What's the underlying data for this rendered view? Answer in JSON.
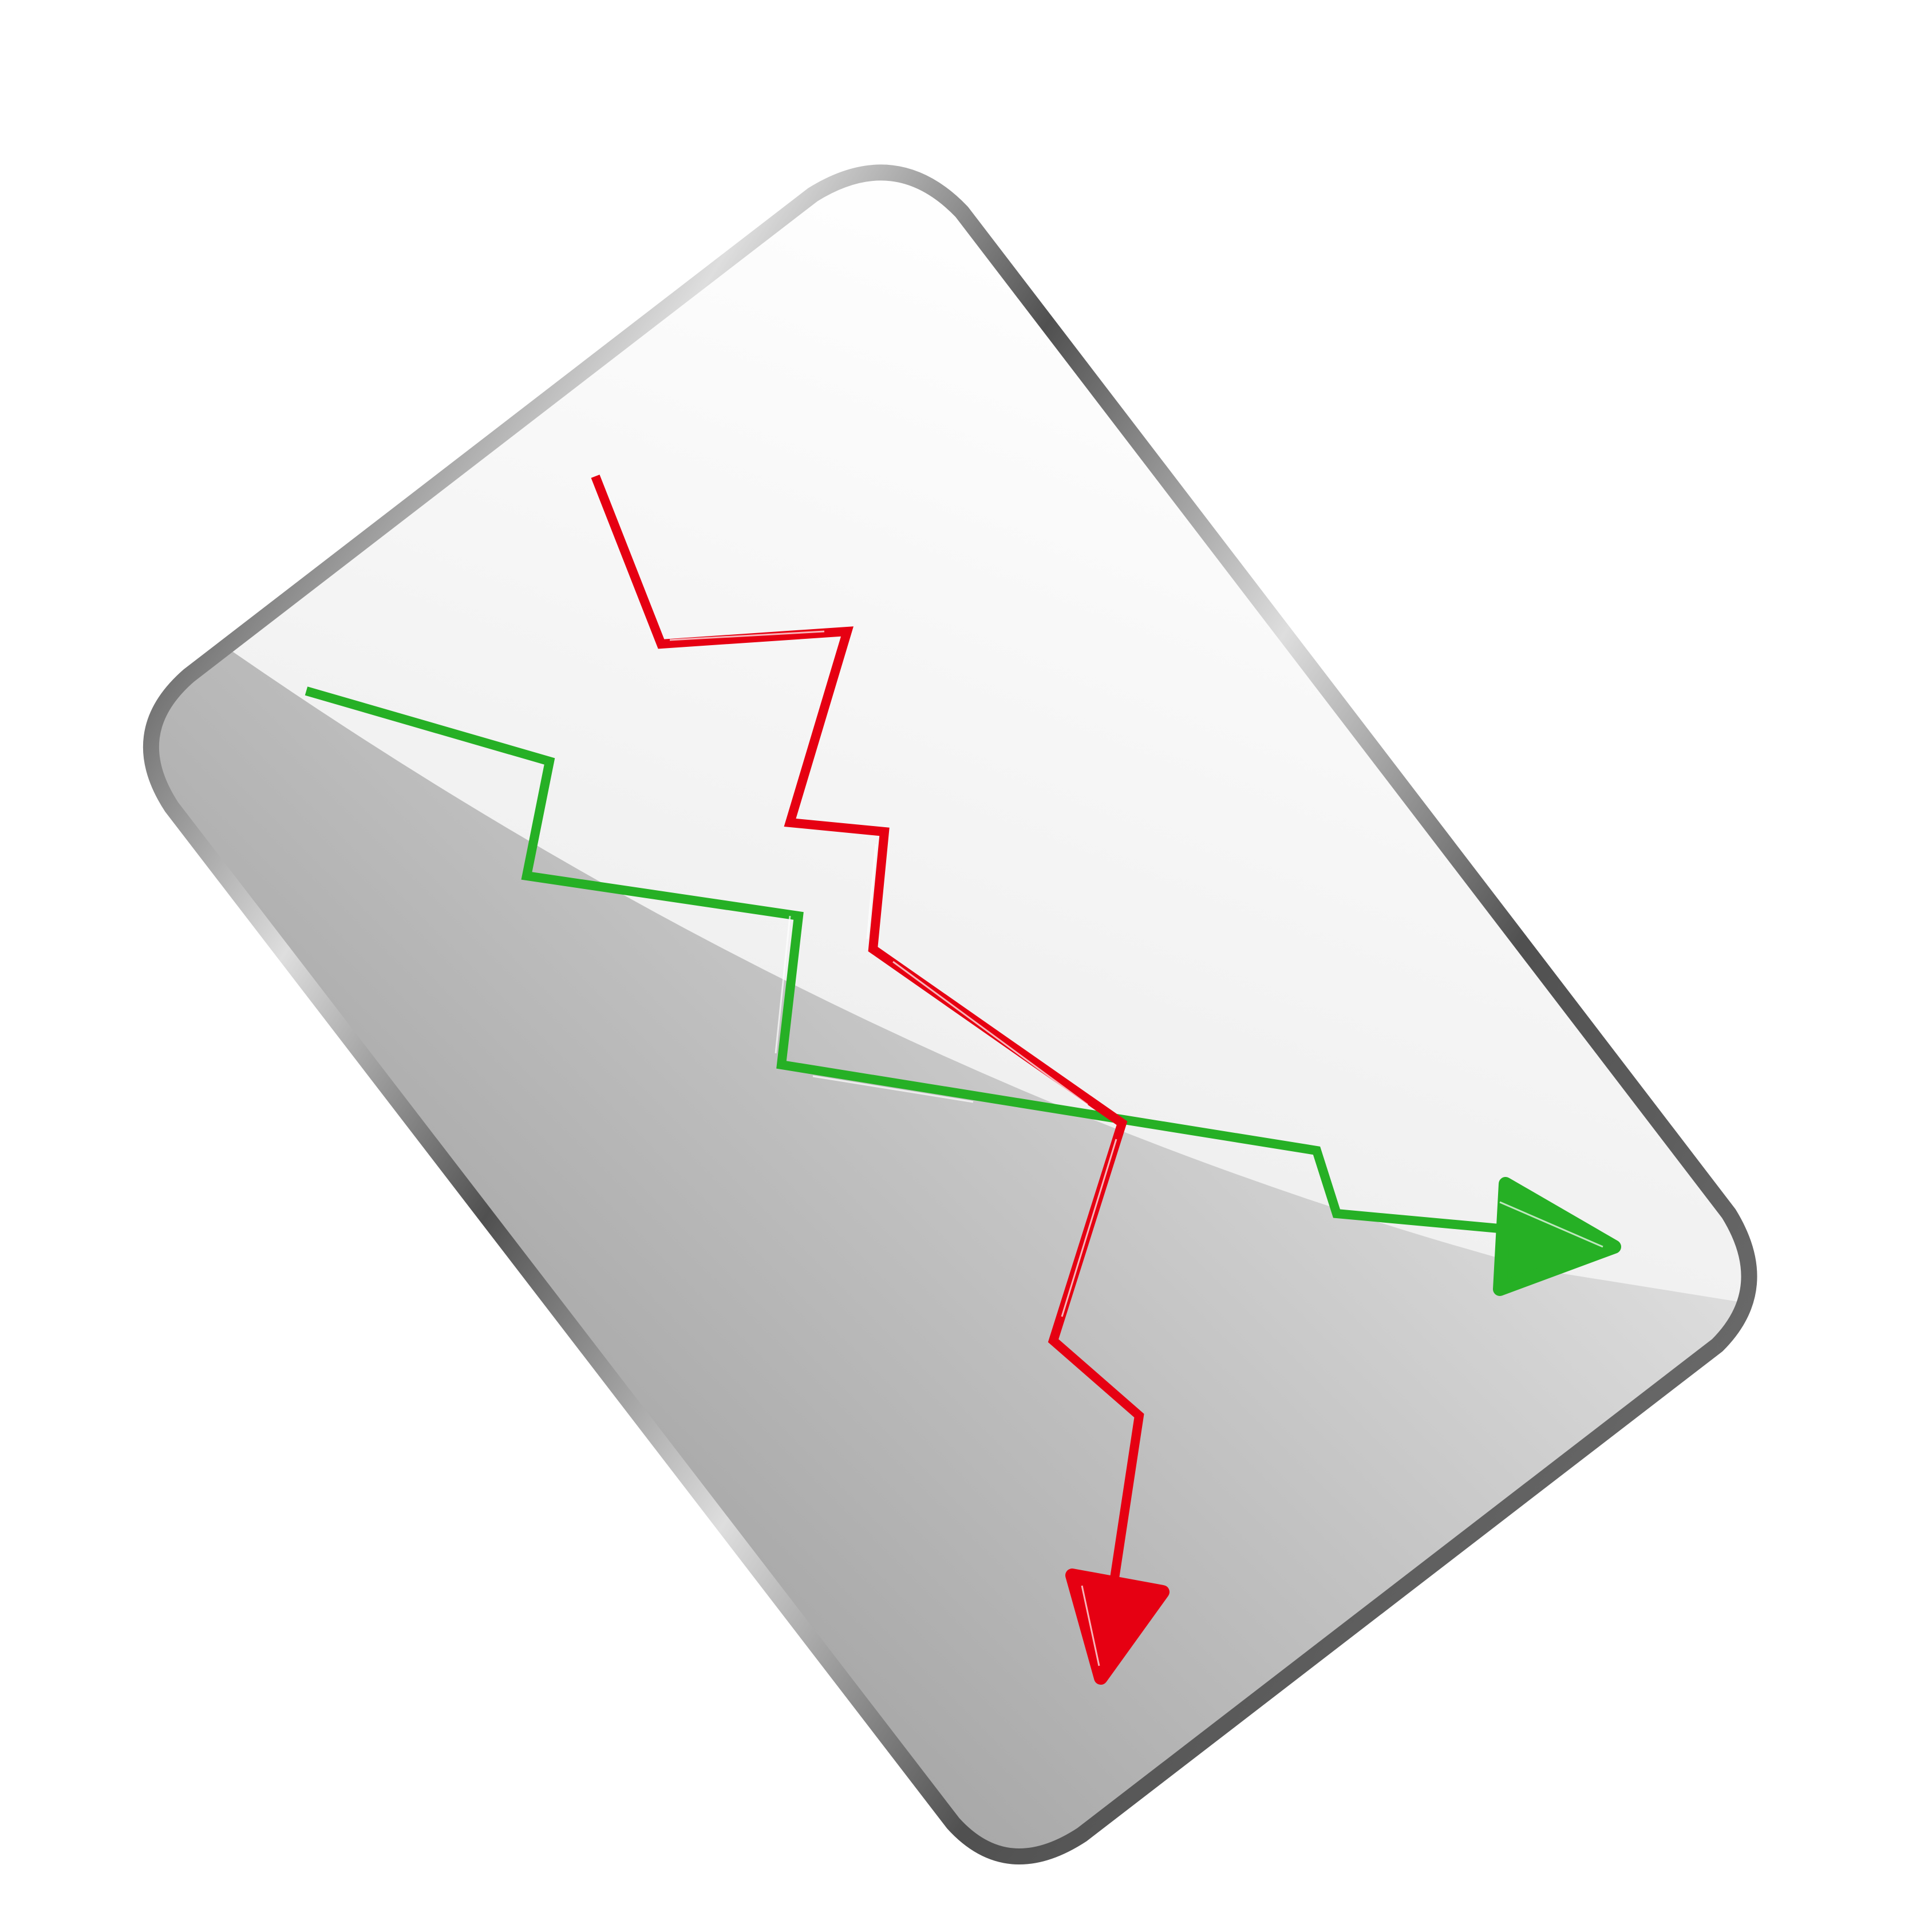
{
  "icon": {
    "name": "zigzag-arrows-card-icon",
    "colors": {
      "background": "#ffffff",
      "card_light": "#ffffff",
      "card_mid": "#efefef",
      "card_shadow_light": "#e2e2e2",
      "card_shadow_dark": "#a2a2a2",
      "border_dark": "#505050",
      "border_light": "#dedede",
      "red_arrow": "#e60012",
      "green_arrow": "#26b025"
    },
    "arrows": [
      {
        "name": "red-zigzag-arrow",
        "color_key": "red_arrow",
        "direction": "down"
      },
      {
        "name": "green-zigzag-arrow",
        "color_key": "green_arrow",
        "direction": "right"
      }
    ]
  }
}
